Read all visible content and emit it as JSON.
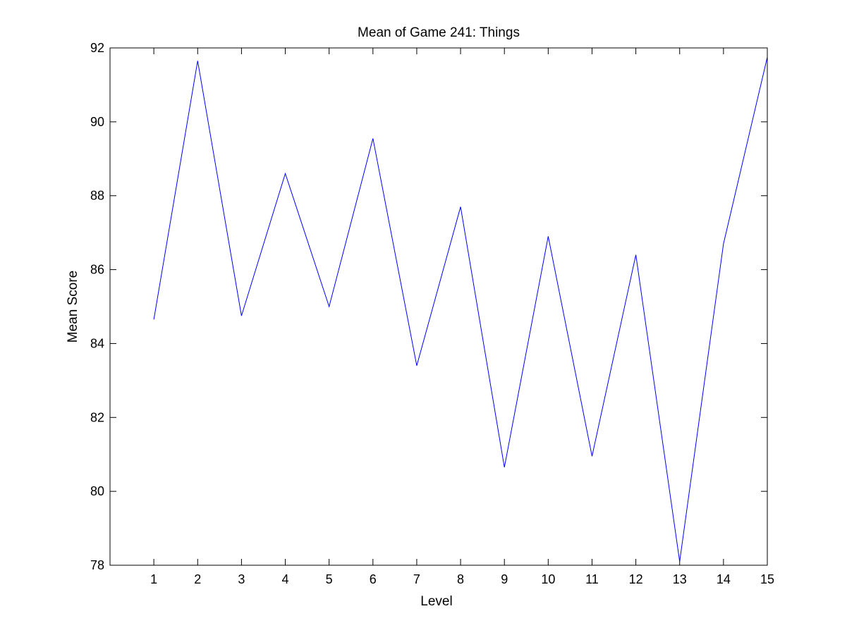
{
  "chart_data": {
    "type": "line",
    "title": "Mean of Game 241: Things",
    "xlabel": "Level",
    "ylabel": "Mean Score",
    "xlim": [
      0,
      15
    ],
    "ylim": [
      78,
      92
    ],
    "xticks": [
      1,
      2,
      3,
      4,
      5,
      6,
      7,
      8,
      9,
      10,
      11,
      12,
      13,
      14,
      15
    ],
    "yticks": [
      78,
      80,
      82,
      84,
      86,
      88,
      90,
      92
    ],
    "grid": false,
    "legend": "none",
    "series": [
      {
        "color": "#0000ff",
        "x": [
          1,
          2,
          3,
          4,
          5,
          6,
          7,
          8,
          9,
          10,
          11,
          12,
          13,
          14,
          15
        ],
        "values": [
          84.65,
          91.65,
          84.75,
          88.6,
          85.0,
          89.55,
          83.4,
          87.7,
          80.65,
          86.9,
          80.95,
          86.4,
          78.1,
          86.7,
          91.75
        ]
      }
    ]
  }
}
